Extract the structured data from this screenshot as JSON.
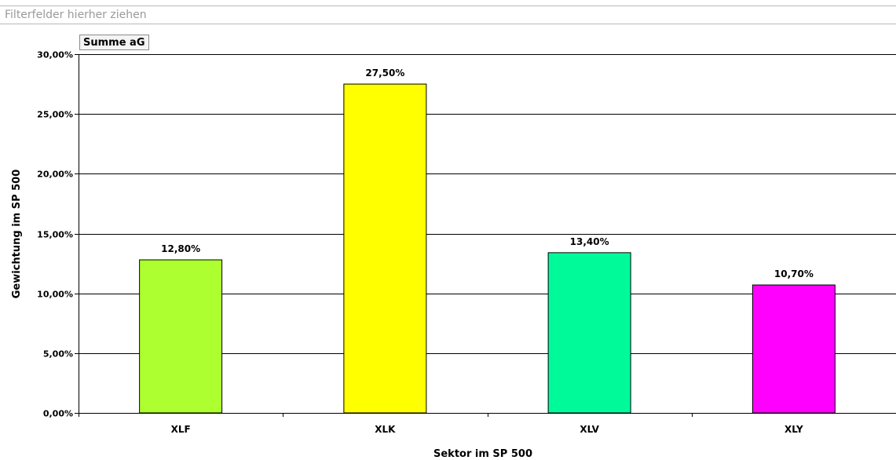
{
  "filter_area": {
    "placeholder": "Filterfelder hierher ziehen"
  },
  "value_field_button": {
    "label": "Summe aG"
  },
  "colors": {
    "XLF": "#adff2f",
    "XLK": "#ffff00",
    "XLV": "#00fa9a",
    "XLY": "#ff00ff"
  },
  "chart_data": {
    "type": "bar",
    "title": "",
    "xlabel": "Sektor im SP 500",
    "ylabel": "Gewichtung im SP 500",
    "categories": [
      "XLF",
      "XLK",
      "XLV",
      "XLY"
    ],
    "values": [
      0.128,
      0.275,
      0.134,
      0.107
    ],
    "data_labels": [
      "12,80%",
      "27,50%",
      "13,40%",
      "10,70%"
    ],
    "ylim": [
      0,
      0.3
    ],
    "yticks": [
      0,
      0.05,
      0.1,
      0.15,
      0.2,
      0.25,
      0.3
    ],
    "ytick_labels": [
      "0,00%",
      "5,00%",
      "10,00%",
      "15,00%",
      "20,00%",
      "25,00%",
      "30,00%"
    ],
    "grid": true,
    "legend": "none"
  }
}
